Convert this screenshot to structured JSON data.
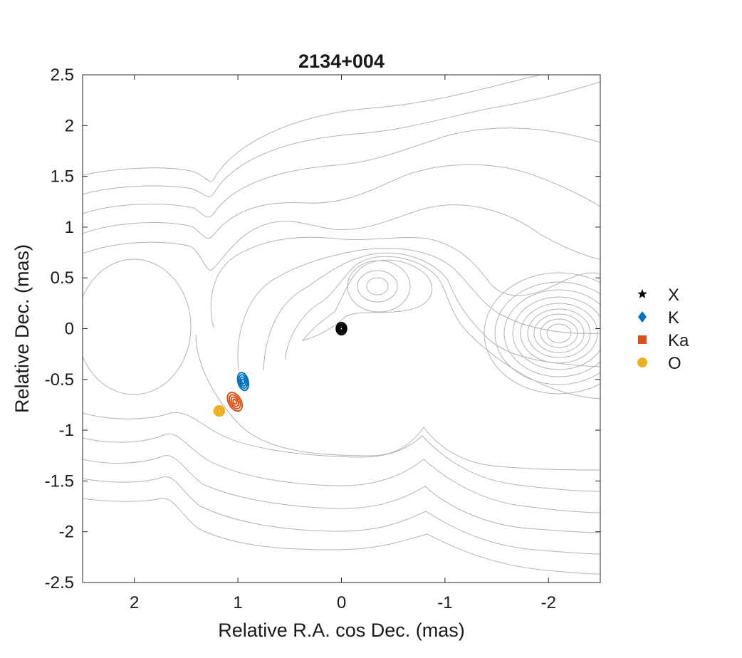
{
  "chart_data": {
    "type": "scatter",
    "title": "2134+004",
    "xlabel": "Relative R.A. cos Dec. (mas)",
    "ylabel": "Relative Dec. (mas)",
    "xlim": [
      2.5,
      -2.5
    ],
    "ylim": [
      -2.5,
      2.5
    ],
    "x_reversed": true,
    "xticks": [
      2,
      1,
      0,
      -1,
      -2
    ],
    "xtick_labels": [
      "2",
      "1",
      "0",
      "-1",
      "-2"
    ],
    "yticks": [
      2.5,
      2,
      1.5,
      1,
      0.5,
      0,
      -0.5,
      -1,
      -1.5,
      -2,
      -2.5
    ],
    "ytick_labels": [
      "2.5",
      "2",
      "1.5",
      "1",
      "0.5",
      "0",
      "-0.5",
      "-1",
      "-1.5",
      "-2",
      "-2.5"
    ],
    "grid": false,
    "box": true,
    "legend_position": "outside-right",
    "contour_color": "#b3b3b3",
    "series": [
      {
        "name": "X",
        "marker": "star",
        "color": "#000000",
        "x": 0.0,
        "y": 0.0,
        "err_x": 0.05,
        "err_y": 0.06,
        "angle": 0
      },
      {
        "name": "K",
        "marker": "diamond",
        "color": "#0072bd",
        "x": 0.95,
        "y": -0.52,
        "err_x": 0.05,
        "err_y": 0.09,
        "angle": -15
      },
      {
        "name": "Ka",
        "marker": "square",
        "color": "#d95319",
        "x": 1.03,
        "y": -0.72,
        "err_x": 0.06,
        "err_y": 0.1,
        "angle": -30
      },
      {
        "name": "O",
        "marker": "circle",
        "color": "#edb120",
        "x": 1.18,
        "y": -0.81,
        "err_x": 0.05,
        "err_y": 0.05,
        "angle": 0
      }
    ]
  }
}
